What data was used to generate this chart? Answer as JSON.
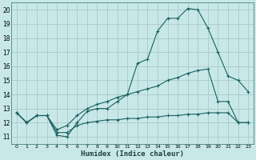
{
  "xlabel": "Humidex (Indice chaleur)",
  "background_color": "#c8e8e8",
  "grid_color": "#aacaca",
  "line_color": "#1a6060",
  "xlim": [
    -0.5,
    23.5
  ],
  "ylim": [
    10.5,
    20.5
  ],
  "yticks": [
    11,
    12,
    13,
    14,
    15,
    16,
    17,
    18,
    19,
    20
  ],
  "xticks": [
    0,
    1,
    2,
    3,
    4,
    5,
    6,
    7,
    8,
    9,
    10,
    11,
    12,
    13,
    14,
    15,
    16,
    17,
    18,
    19,
    20,
    21,
    22,
    23
  ],
  "xtick_labels": [
    "0",
    "1",
    "2",
    "3",
    "4",
    "5",
    "6",
    "7",
    "8",
    "9",
    "10",
    "11",
    "12",
    "13",
    "14",
    "15",
    "16",
    "17",
    "18",
    "19",
    "20",
    "21",
    "22",
    "23"
  ],
  "line1_x": [
    0,
    1,
    2,
    3,
    4,
    5,
    6,
    7,
    8,
    9,
    10,
    11,
    12,
    13,
    14,
    15,
    16,
    17,
    18,
    19,
    20,
    21,
    22,
    23
  ],
  "line1_y": [
    12.7,
    12.0,
    12.5,
    12.5,
    11.1,
    11.0,
    12.0,
    12.8,
    13.0,
    13.0,
    13.5,
    14.0,
    16.2,
    16.5,
    18.5,
    19.4,
    19.4,
    20.1,
    20.0,
    18.7,
    17.0,
    15.3,
    15.0,
    14.2
  ],
  "line2_x": [
    0,
    1,
    2,
    3,
    4,
    5,
    6,
    7,
    8,
    9,
    10,
    11,
    12,
    13,
    14,
    15,
    16,
    17,
    18,
    19,
    20,
    21,
    22,
    23
  ],
  "line2_y": [
    12.7,
    12.0,
    12.5,
    12.5,
    11.5,
    11.8,
    12.5,
    13.0,
    13.3,
    13.5,
    13.8,
    14.0,
    14.2,
    14.4,
    14.6,
    15.0,
    15.2,
    15.5,
    15.7,
    15.8,
    13.5,
    13.5,
    12.0,
    12.0
  ],
  "line3_x": [
    0,
    1,
    2,
    3,
    4,
    5,
    6,
    7,
    8,
    9,
    10,
    11,
    12,
    13,
    14,
    15,
    16,
    17,
    18,
    19,
    20,
    21,
    22,
    23
  ],
  "line3_y": [
    12.7,
    12.0,
    12.5,
    12.5,
    11.3,
    11.3,
    11.8,
    12.0,
    12.1,
    12.2,
    12.2,
    12.3,
    12.3,
    12.4,
    12.4,
    12.5,
    12.5,
    12.6,
    12.6,
    12.7,
    12.7,
    12.7,
    12.0,
    12.0
  ]
}
